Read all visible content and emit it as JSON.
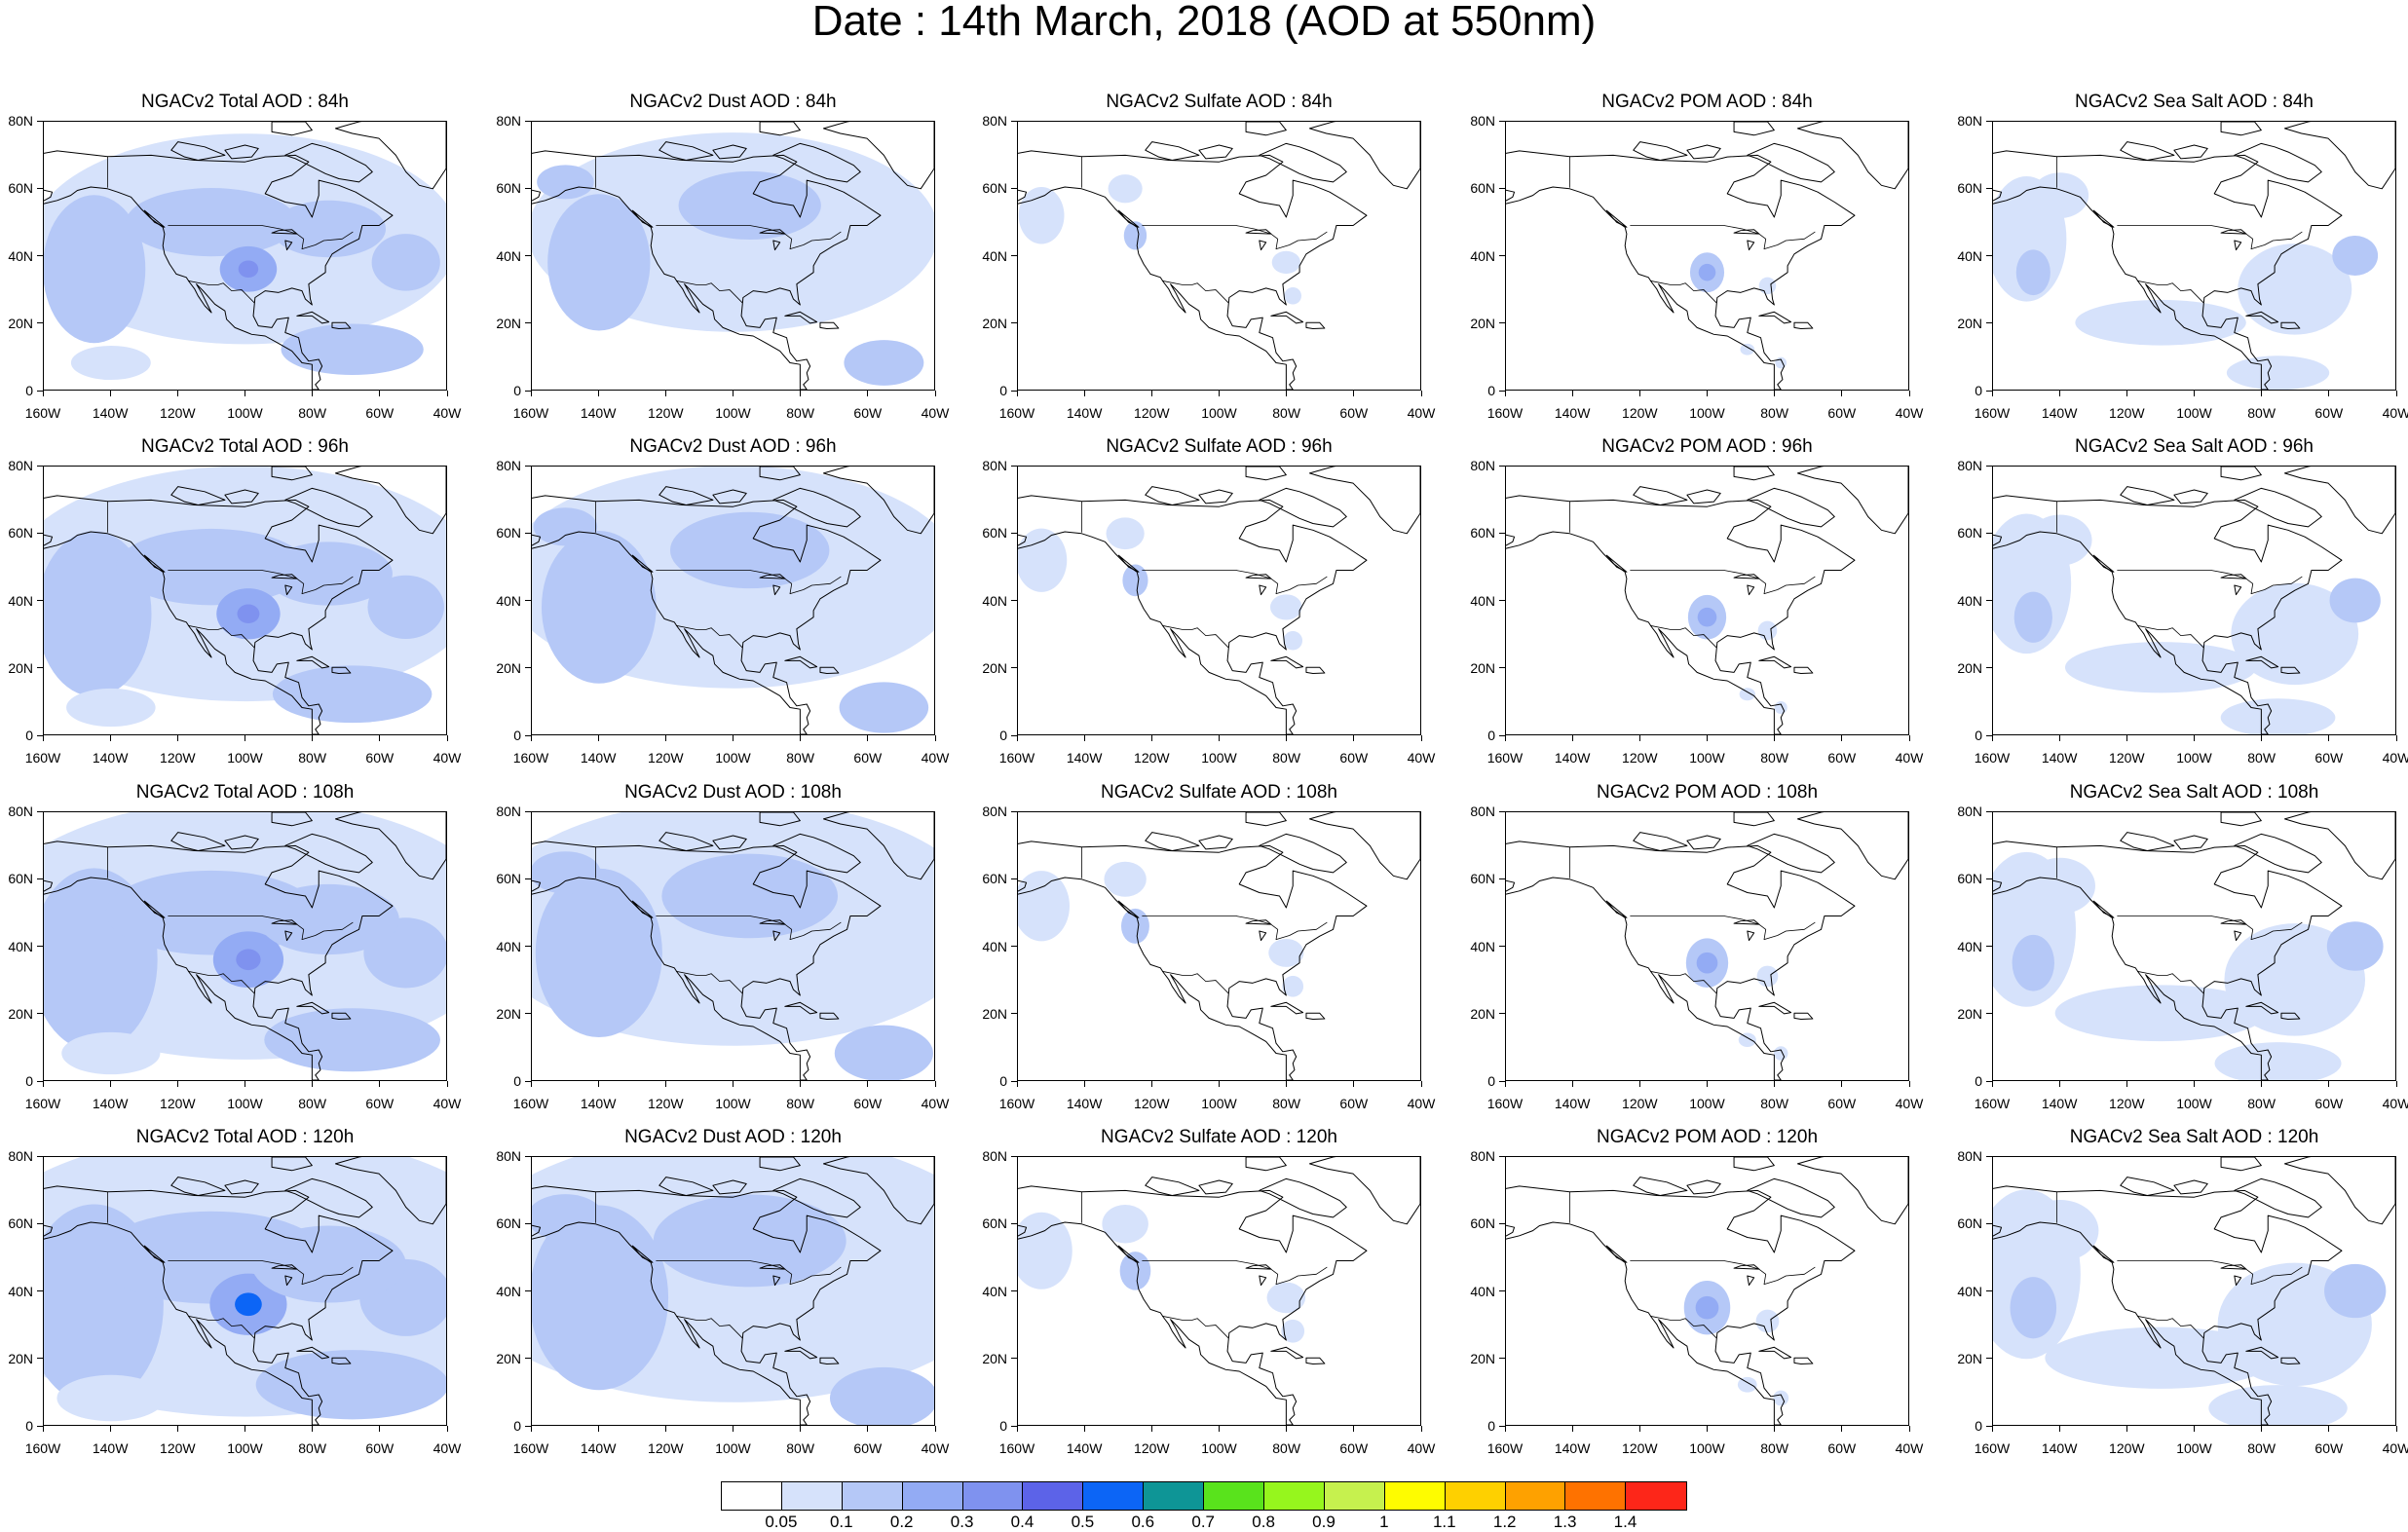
{
  "title": "Date : 14th March, 2018 (AOD at 550nm)",
  "panels": [
    {
      "title": "NGACv2 Total AOD : 84h",
      "species": "total",
      "lead_hours": 84
    },
    {
      "title": "NGACv2 Dust AOD : 84h",
      "species": "dust",
      "lead_hours": 84
    },
    {
      "title": "NGACv2 Sulfate AOD : 84h",
      "species": "sulfate",
      "lead_hours": 84
    },
    {
      "title": "NGACv2 POM AOD : 84h",
      "species": "pom",
      "lead_hours": 84
    },
    {
      "title": "NGACv2 Sea Salt AOD : 84h",
      "species": "seasalt",
      "lead_hours": 84
    },
    {
      "title": "NGACv2 Total AOD : 96h",
      "species": "total",
      "lead_hours": 96
    },
    {
      "title": "NGACv2 Dust AOD : 96h",
      "species": "dust",
      "lead_hours": 96
    },
    {
      "title": "NGACv2 Sulfate AOD : 96h",
      "species": "sulfate",
      "lead_hours": 96
    },
    {
      "title": "NGACv2 POM AOD : 96h",
      "species": "pom",
      "lead_hours": 96
    },
    {
      "title": "NGACv2 Sea Salt AOD : 96h",
      "species": "seasalt",
      "lead_hours": 96
    },
    {
      "title": "NGACv2 Total AOD : 108h",
      "species": "total",
      "lead_hours": 108
    },
    {
      "title": "NGACv2 Dust AOD : 108h",
      "species": "dust",
      "lead_hours": 108
    },
    {
      "title": "NGACv2 Sulfate AOD : 108h",
      "species": "sulfate",
      "lead_hours": 108
    },
    {
      "title": "NGACv2 POM AOD : 108h",
      "species": "pom",
      "lead_hours": 108
    },
    {
      "title": "NGACv2 Sea Salt AOD : 108h",
      "species": "seasalt",
      "lead_hours": 108
    },
    {
      "title": "NGACv2 Total AOD : 120h",
      "species": "total",
      "lead_hours": 120
    },
    {
      "title": "NGACv2 Dust AOD : 120h",
      "species": "dust",
      "lead_hours": 120
    },
    {
      "title": "NGACv2 Sulfate AOD : 120h",
      "species": "sulfate",
      "lead_hours": 120
    },
    {
      "title": "NGACv2 POM AOD : 120h",
      "species": "pom",
      "lead_hours": 120
    },
    {
      "title": "NGACv2 Sea Salt  AOD : 120h",
      "species": "seasalt",
      "lead_hours": 120
    }
  ],
  "axes": {
    "lat_labels": [
      "80N",
      "60N",
      "40N",
      "20N",
      "0"
    ],
    "lat_values": [
      80,
      60,
      40,
      20,
      0
    ],
    "lon_labels": [
      "160W",
      "140W",
      "120W",
      "100W",
      "80W",
      "60W",
      "40W"
    ],
    "lon_values": [
      -160,
      -140,
      -120,
      -100,
      -80,
      -60,
      -40
    ],
    "lon_range": [
      -160,
      -40
    ],
    "lat_range": [
      0,
      80
    ]
  },
  "colorbar": {
    "labels": [
      "0.05",
      "0.1",
      "0.2",
      "0.3",
      "0.4",
      "0.5",
      "0.6",
      "0.7",
      "0.8",
      "0.9",
      "1",
      "1.1",
      "1.2",
      "1.3",
      "1.4"
    ],
    "colors": [
      "#ffffff",
      "#d6e2fb",
      "#b5c8f7",
      "#93abf4",
      "#7f92ef",
      "#5c63e8",
      "#0c65f6",
      "#0e9596",
      "#59e31c",
      "#96f61d",
      "#c6f14e",
      "#fefc00",
      "#fed000",
      "#fea100",
      "#fe7200",
      "#fd2619"
    ]
  }
}
